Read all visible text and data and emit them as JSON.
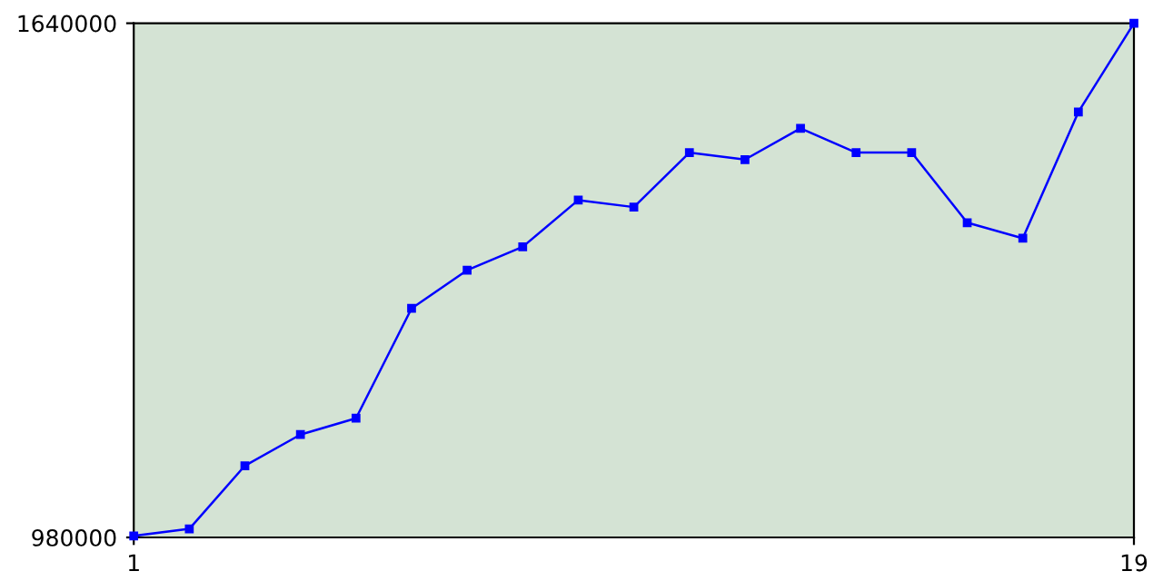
{
  "chart_data": {
    "type": "line",
    "x": [
      1,
      2,
      3,
      4,
      5,
      6,
      7,
      8,
      9,
      10,
      11,
      12,
      13,
      14,
      15,
      16,
      17,
      18,
      19
    ],
    "series": [
      {
        "color": "#0000ff",
        "values": [
          982000,
          991000,
          1072000,
          1112000,
          1133000,
          1274000,
          1323000,
          1353000,
          1413000,
          1404000,
          1474000,
          1465000,
          1505000,
          1474000,
          1474000,
          1384000,
          1364000,
          1526000,
          1640000
        ]
      }
    ],
    "xlim": [
      1,
      19
    ],
    "ylim": [
      980000,
      1640000
    ],
    "xticks": [
      1,
      19
    ],
    "yticks": [
      980000,
      1640000
    ],
    "marker": "square",
    "line_style": "solid",
    "grid": false,
    "legend": false
  }
}
